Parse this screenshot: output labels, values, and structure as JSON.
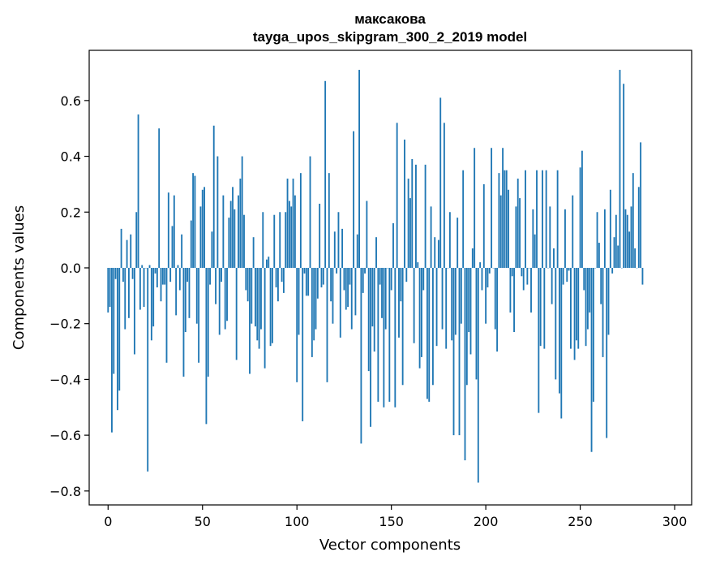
{
  "chart_data": {
    "type": "bar",
    "title_line1": "максакова",
    "title_line2": "tayga_upos_skipgram_300_2_2019 model",
    "xlabel": "Vector components",
    "ylabel": "Components values",
    "xlim": [
      -10,
      309
    ],
    "ylim": [
      -0.85,
      0.78
    ],
    "xticks": [
      0,
      50,
      100,
      150,
      200,
      250,
      300
    ],
    "xtick_labels": [
      "0",
      "50",
      "100",
      "150",
      "200",
      "250",
      "300"
    ],
    "yticks": [
      -0.8,
      -0.6,
      -0.4,
      -0.2,
      0.0,
      0.2,
      0.4,
      0.6
    ],
    "ytick_labels": [
      "−0.8",
      "−0.6",
      "−0.4",
      "−0.2",
      "0.0",
      "0.2",
      "0.4",
      "0.6"
    ],
    "bar_color": "#1f77b4",
    "values": [
      -0.16,
      -0.14,
      -0.59,
      -0.38,
      -0.04,
      -0.51,
      -0.44,
      0.14,
      -0.05,
      -0.22,
      0.1,
      -0.18,
      0.12,
      -0.04,
      -0.31,
      0.2,
      0.55,
      -0.15,
      0.01,
      -0.14,
      0.0,
      -0.73,
      0.01,
      -0.26,
      -0.21,
      -0.02,
      -0.07,
      0.5,
      -0.12,
      -0.06,
      -0.06,
      -0.34,
      0.27,
      -0.05,
      0.15,
      0.26,
      -0.17,
      0.01,
      -0.08,
      0.12,
      -0.39,
      -0.23,
      -0.05,
      -0.18,
      0.17,
      0.34,
      0.33,
      -0.2,
      -0.34,
      0.22,
      0.28,
      0.29,
      -0.56,
      -0.39,
      -0.06,
      0.13,
      0.51,
      -0.13,
      0.4,
      -0.24,
      -0.05,
      0.26,
      -0.22,
      -0.19,
      0.18,
      0.24,
      0.29,
      0.21,
      -0.33,
      0.26,
      0.32,
      0.4,
      0.19,
      -0.08,
      -0.12,
      -0.38,
      -0.2,
      0.11,
      -0.21,
      -0.26,
      -0.29,
      -0.22,
      0.2,
      -0.36,
      0.03,
      0.04,
      -0.28,
      -0.27,
      0.19,
      -0.07,
      -0.12,
      0.2,
      -0.05,
      -0.09,
      0.2,
      0.32,
      0.24,
      0.22,
      0.32,
      0.26,
      -0.41,
      -0.24,
      0.34,
      -0.55,
      -0.02,
      -0.1,
      -0.1,
      0.4,
      -0.32,
      -0.26,
      -0.22,
      -0.11,
      0.23,
      -0.07,
      -0.06,
      0.67,
      -0.41,
      0.34,
      -0.12,
      -0.2,
      0.13,
      -0.02,
      0.2,
      -0.25,
      0.14,
      -0.08,
      -0.15,
      -0.14,
      -0.06,
      -0.22,
      0.49,
      -0.17,
      0.12,
      0.71,
      -0.63,
      -0.09,
      -0.02,
      0.24,
      -0.37,
      -0.57,
      -0.21,
      -0.3,
      0.11,
      -0.48,
      -0.06,
      -0.18,
      -0.5,
      -0.22,
      0.0,
      -0.48,
      -0.08,
      0.16,
      -0.5,
      0.52,
      -0.25,
      -0.12,
      -0.42,
      0.46,
      -0.05,
      0.32,
      0.25,
      0.39,
      -0.27,
      0.37,
      0.02,
      -0.36,
      -0.32,
      -0.08,
      0.37,
      -0.47,
      -0.48,
      0.22,
      -0.42,
      0.11,
      -0.28,
      0.1,
      0.61,
      -0.22,
      0.52,
      -0.29,
      0.0,
      0.2,
      -0.26,
      -0.6,
      -0.24,
      0.18,
      -0.6,
      -0.2,
      0.35,
      -0.69,
      -0.42,
      -0.23,
      -0.31,
      0.07,
      0.43,
      -0.4,
      -0.77,
      0.02,
      -0.08,
      0.3,
      -0.2,
      -0.07,
      -0.02,
      0.43,
      0.0,
      -0.22,
      -0.3,
      0.34,
      0.26,
      0.43,
      0.35,
      0.35,
      0.28,
      -0.16,
      -0.03,
      -0.23,
      0.22,
      0.32,
      0.25,
      -0.03,
      -0.08,
      0.35,
      -0.06,
      0.0,
      -0.16,
      0.21,
      0.12,
      0.35,
      -0.52,
      -0.28,
      0.35,
      -0.29,
      0.35,
      0.0,
      0.22,
      -0.13,
      0.07,
      -0.4,
      0.35,
      -0.45,
      -0.54,
      -0.06,
      0.21,
      -0.05,
      -0.01,
      -0.29,
      0.26,
      -0.33,
      -0.26,
      -0.29,
      0.36,
      0.42,
      -0.08,
      -0.28,
      -0.22,
      -0.16,
      -0.66,
      -0.48,
      0.0,
      0.2,
      0.09,
      -0.13,
      -0.32,
      0.21,
      -0.61,
      -0.24,
      0.28,
      -0.02,
      0.11,
      0.19,
      0.08,
      0.71,
      0.0,
      0.66,
      0.21,
      0.19,
      0.13,
      0.22,
      0.34,
      0.07,
      0.0,
      0.29,
      0.45,
      -0.06
    ]
  }
}
